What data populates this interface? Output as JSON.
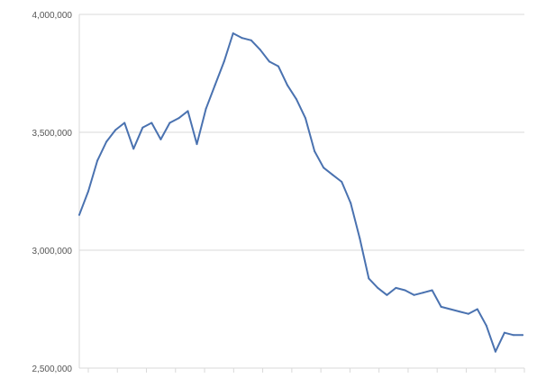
{
  "chart_data": {
    "type": "line",
    "title": "",
    "xlabel": "",
    "ylabel": "",
    "ylim": [
      2500000,
      4000000
    ],
    "yticks": [
      2500000,
      3000000,
      3500000,
      4000000
    ],
    "ytick_labels": [
      "2,500,000",
      "3,000,000",
      "3,500,000",
      "4,000,000"
    ],
    "x_tick_count": 16,
    "grid": "horizontal",
    "legend": "none",
    "line_color": "#4a72b0",
    "series": [
      {
        "values": [
          3150000,
          3250000,
          3380000,
          3460000,
          3510000,
          3540000,
          3430000,
          3520000,
          3540000,
          3470000,
          3540000,
          3560000,
          3590000,
          3450000,
          3600000,
          3700000,
          3800000,
          3920000,
          3900000,
          3890000,
          3850000,
          3800000,
          3780000,
          3700000,
          3640000,
          3560000,
          3420000,
          3350000,
          3320000,
          3290000,
          3200000,
          3050000,
          2880000,
          2840000,
          2810000,
          2840000,
          2830000,
          2810000,
          2820000,
          2830000,
          2760000,
          2750000,
          2740000,
          2730000,
          2750000,
          2680000,
          2570000,
          2650000,
          2640000,
          2640000
        ]
      }
    ]
  }
}
